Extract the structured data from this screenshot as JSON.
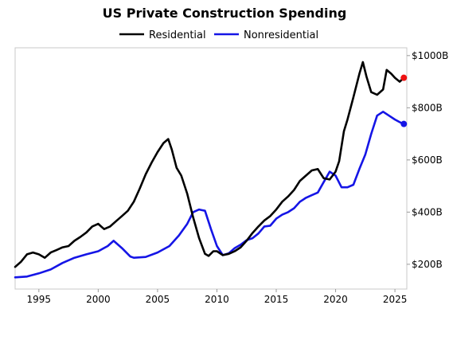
{
  "chart_data": {
    "type": "line",
    "title": "US Private Construction Spending",
    "xlabel": "",
    "ylabel": "",
    "x_ticks": [
      "1995",
      "2000",
      "2005",
      "2010",
      "2015",
      "2020",
      "2025"
    ],
    "y_ticks": [
      "$200B",
      "$400B",
      "$600B",
      "$800B",
      "$1000B"
    ],
    "xlim": [
      1993.0,
      2026.0
    ],
    "ylim": [
      105,
      1030
    ],
    "legend_position": "top-center",
    "grid": false,
    "series": [
      {
        "name": "Residential",
        "color": "#000000",
        "marker_color": "#ee1111",
        "points": [
          [
            1993.0,
            190
          ],
          [
            1993.5,
            210
          ],
          [
            1994.0,
            238
          ],
          [
            1994.5,
            245
          ],
          [
            1995.0,
            238
          ],
          [
            1995.5,
            225
          ],
          [
            1996.0,
            245
          ],
          [
            1996.5,
            255
          ],
          [
            1997.0,
            265
          ],
          [
            1997.5,
            270
          ],
          [
            1998.0,
            290
          ],
          [
            1998.5,
            305
          ],
          [
            1999.0,
            322
          ],
          [
            1999.5,
            345
          ],
          [
            2000.0,
            355
          ],
          [
            2000.5,
            335
          ],
          [
            2001.0,
            345
          ],
          [
            2001.5,
            365
          ],
          [
            2002.0,
            385
          ],
          [
            2002.5,
            405
          ],
          [
            2003.0,
            440
          ],
          [
            2003.5,
            490
          ],
          [
            2004.0,
            545
          ],
          [
            2004.5,
            590
          ],
          [
            2005.0,
            630
          ],
          [
            2005.5,
            665
          ],
          [
            2005.9,
            680
          ],
          [
            2006.2,
            640
          ],
          [
            2006.6,
            570
          ],
          [
            2007.0,
            540
          ],
          [
            2007.5,
            470
          ],
          [
            2008.0,
            380
          ],
          [
            2008.5,
            300
          ],
          [
            2009.0,
            240
          ],
          [
            2009.3,
            232
          ],
          [
            2009.7,
            250
          ],
          [
            2010.0,
            250
          ],
          [
            2010.5,
            235
          ],
          [
            2011.0,
            240
          ],
          [
            2011.5,
            250
          ],
          [
            2012.0,
            265
          ],
          [
            2012.5,
            290
          ],
          [
            2013.0,
            320
          ],
          [
            2013.5,
            345
          ],
          [
            2014.0,
            368
          ],
          [
            2014.5,
            385
          ],
          [
            2015.0,
            410
          ],
          [
            2015.5,
            440
          ],
          [
            2016.0,
            460
          ],
          [
            2016.5,
            485
          ],
          [
            2017.0,
            520
          ],
          [
            2017.5,
            540
          ],
          [
            2018.0,
            560
          ],
          [
            2018.5,
            565
          ],
          [
            2019.0,
            530
          ],
          [
            2019.5,
            525
          ],
          [
            2020.0,
            555
          ],
          [
            2020.3,
            595
          ],
          [
            2020.7,
            710
          ],
          [
            2021.0,
            755
          ],
          [
            2021.5,
            840
          ],
          [
            2022.0,
            930
          ],
          [
            2022.3,
            975
          ],
          [
            2022.6,
            920
          ],
          [
            2023.0,
            860
          ],
          [
            2023.5,
            850
          ],
          [
            2024.0,
            870
          ],
          [
            2024.3,
            945
          ],
          [
            2024.7,
            930
          ],
          [
            2025.0,
            915
          ],
          [
            2025.4,
            900
          ],
          [
            2025.75,
            915
          ]
        ]
      },
      {
        "name": "Nonresidential",
        "color": "#1515e6",
        "marker_color": "#1515e6",
        "points": [
          [
            1993.0,
            150
          ],
          [
            1994.0,
            153
          ],
          [
            1995.0,
            165
          ],
          [
            1996.0,
            180
          ],
          [
            1997.0,
            205
          ],
          [
            1998.0,
            225
          ],
          [
            1999.0,
            238
          ],
          [
            2000.0,
            250
          ],
          [
            2000.8,
            270
          ],
          [
            2001.3,
            290
          ],
          [
            2002.0,
            262
          ],
          [
            2002.7,
            230
          ],
          [
            2003.0,
            225
          ],
          [
            2004.0,
            228
          ],
          [
            2005.0,
            245
          ],
          [
            2006.0,
            270
          ],
          [
            2006.8,
            310
          ],
          [
            2007.5,
            355
          ],
          [
            2008.0,
            400
          ],
          [
            2008.5,
            410
          ],
          [
            2009.0,
            405
          ],
          [
            2009.5,
            335
          ],
          [
            2010.0,
            270
          ],
          [
            2010.5,
            235
          ],
          [
            2011.0,
            242
          ],
          [
            2011.5,
            262
          ],
          [
            2012.0,
            275
          ],
          [
            2012.5,
            292
          ],
          [
            2013.0,
            300
          ],
          [
            2013.5,
            318
          ],
          [
            2014.0,
            345
          ],
          [
            2014.5,
            348
          ],
          [
            2015.0,
            375
          ],
          [
            2015.5,
            390
          ],
          [
            2016.0,
            400
          ],
          [
            2016.5,
            415
          ],
          [
            2017.0,
            440
          ],
          [
            2017.5,
            455
          ],
          [
            2018.0,
            465
          ],
          [
            2018.5,
            475
          ],
          [
            2019.0,
            515
          ],
          [
            2019.5,
            555
          ],
          [
            2020.0,
            540
          ],
          [
            2020.5,
            495
          ],
          [
            2021.0,
            495
          ],
          [
            2021.5,
            505
          ],
          [
            2022.0,
            565
          ],
          [
            2022.5,
            620
          ],
          [
            2023.0,
            700
          ],
          [
            2023.5,
            770
          ],
          [
            2024.0,
            785
          ],
          [
            2024.5,
            770
          ],
          [
            2025.0,
            755
          ],
          [
            2025.4,
            745
          ],
          [
            2025.75,
            738
          ]
        ]
      }
    ]
  }
}
